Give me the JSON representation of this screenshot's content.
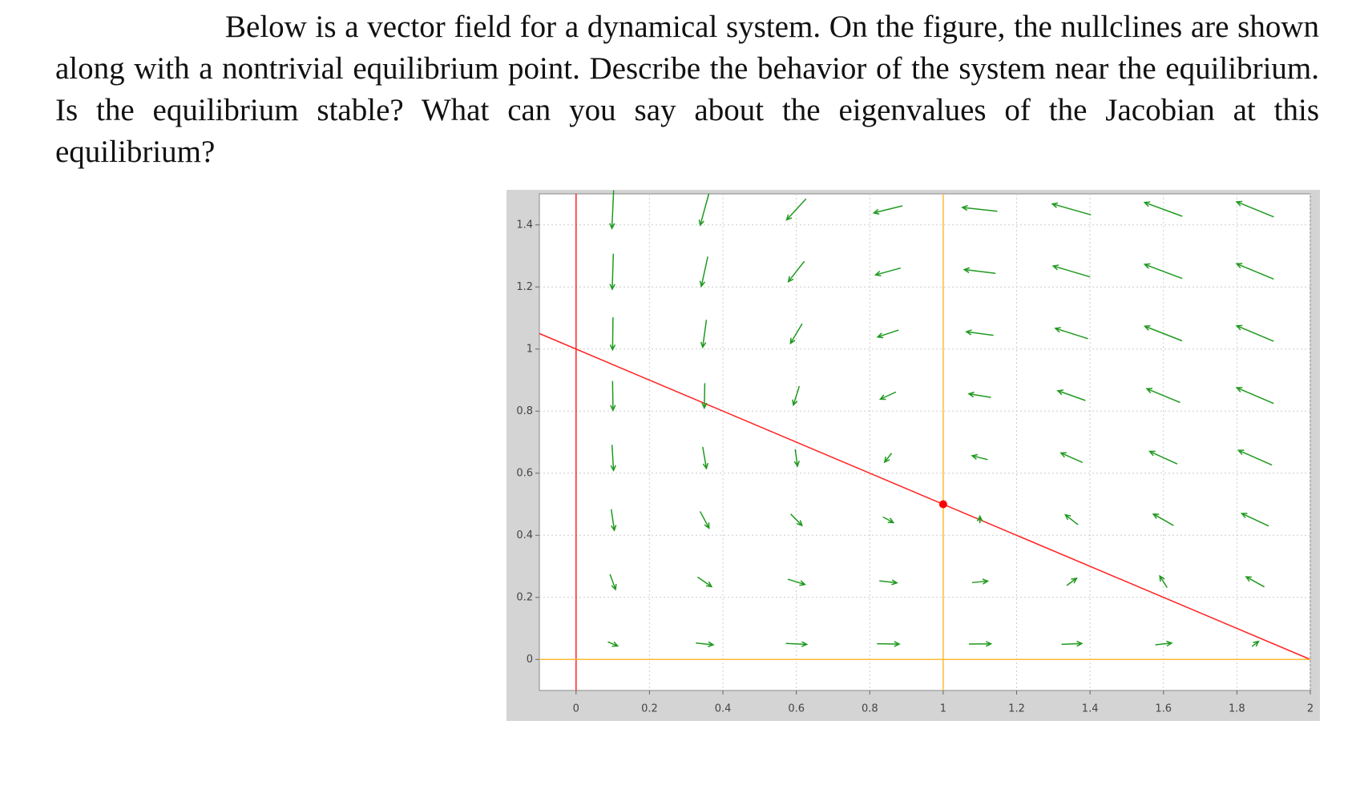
{
  "question": "Below is a vector field for a dynamical system. On the figure, the nullclines are shown along with a nontrivial equilibrium point. Describe the behavior of the system near the equilibrium. Is the equilibrium stable? What can you say about the eigenvalues of the Jacobian at this equilibrium?",
  "chart_data": {
    "type": "vector-field",
    "xlim": [
      -0.1,
      2
    ],
    "ylim": [
      -0.1,
      1.5
    ],
    "xticks": [
      0,
      0.2,
      0.4,
      0.6,
      0.8,
      1,
      1.2,
      1.4,
      1.6,
      1.8,
      2
    ],
    "yticks": [
      0,
      0.2,
      0.4,
      0.6,
      0.8,
      1,
      1.2,
      1.4
    ],
    "grid": true,
    "arrow_color": "#1f9a1f",
    "field": {
      "x": [
        0.1,
        0.35,
        0.6,
        0.85,
        1.1,
        1.35,
        1.6,
        1.85
      ],
      "y": [
        0.05,
        0.25,
        0.45,
        0.65,
        0.85,
        1.05,
        1.25,
        1.45
      ],
      "u": [
        [
          0.09,
          0.07,
          0.05,
          0.03,
          0.01,
          -0.01,
          -0.03,
          -0.05
        ],
        [
          0.271,
          0.201,
          0.131,
          0.061,
          -0.009,
          -0.079,
          -0.149,
          -0.219
        ],
        [
          0.39,
          0.27,
          0.15,
          0.03,
          -0.09,
          -0.21,
          -0.33,
          -0.45
        ],
        [
          0.446,
          0.276,
          0.106,
          -0.064,
          -0.234,
          -0.404,
          -0.574,
          -0.744
        ],
        [
          0.44,
          0.22,
          0,
          -0.22,
          -0.44,
          -0.66,
          -0.88,
          -1.1
        ],
        [
          0.371,
          0.101,
          -0.169,
          -0.439,
          -0.709,
          -0.979,
          -1.249,
          -1.519
        ],
        [
          0.24,
          -0.08,
          -0.4,
          -0.72,
          -1.04,
          -1.36,
          -1.68,
          -2.0
        ],
        [
          0.046,
          -0.324,
          -0.694,
          -1.064,
          -1.434,
          -1.804,
          -2.174,
          -2.544
        ]
      ],
      "v": [
        [
          -0.045,
          -0.225,
          -0.405,
          -0.585,
          -0.765,
          -0.945,
          -1.125,
          -1.305
        ],
        [
          -0.0325,
          -0.1625,
          -0.2925,
          -0.4225,
          -0.5525,
          -0.6825,
          -0.8125,
          -0.9425
        ],
        [
          -0.02,
          -0.1,
          -0.18,
          -0.26,
          -0.34,
          -0.42,
          -0.5,
          -0.58
        ],
        [
          -0.0075,
          -0.0375,
          -0.0675,
          -0.0975,
          -0.1275,
          -0.1575,
          -0.1875,
          -0.2175
        ],
        [
          0.005,
          0.025,
          0.045,
          0.065,
          0.085,
          0.105,
          0.125,
          0.145
        ],
        [
          0.0175,
          0.0875,
          0.1575,
          0.2275,
          0.2975,
          0.3675,
          0.4375,
          0.5075
        ],
        [
          0.03,
          0.15,
          0.27,
          0.39,
          0.51,
          0.63,
          0.75,
          0.87
        ],
        [
          0.0425,
          0.2125,
          0.3825,
          0.5525,
          0.7225,
          0.8925,
          1.0625,
          1.2325
        ]
      ]
    },
    "nullclines": [
      {
        "color": "#ff2222",
        "x": [
          0,
          0
        ],
        "y": [
          -0.1,
          1.5
        ]
      },
      {
        "color": "#ff2222",
        "x": [
          -0.1,
          2
        ],
        "y": [
          1.05,
          0
        ]
      },
      {
        "color": "#ffbb33",
        "x": [
          1,
          1
        ],
        "y": [
          -0.1,
          1.5
        ]
      },
      {
        "color": "#ffbb33",
        "x": [
          -0.1,
          2
        ],
        "y": [
          0,
          0
        ]
      }
    ],
    "equilibrium": {
      "x": 1,
      "y": 0.5,
      "color": "#ff0000"
    }
  }
}
